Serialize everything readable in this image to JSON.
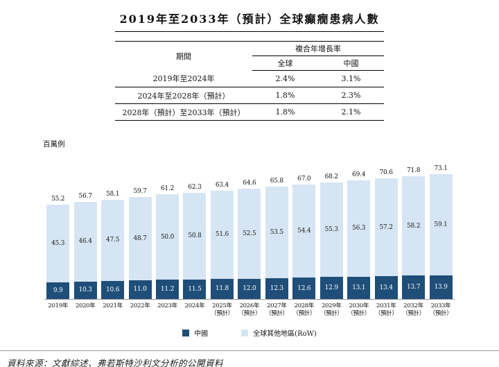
{
  "title": "2019年至2033年（預計）全球癲癇患病人數",
  "table": {
    "headers": {
      "period": "期間",
      "cagr": "複合年增長率",
      "global": "全球",
      "china": "中國"
    },
    "rows": [
      {
        "period": "2019年至2024年",
        "global": "2.4%",
        "china": "3.1%"
      },
      {
        "period": "2024年至2028年（預計）",
        "global": "1.8%",
        "china": "2.3%"
      },
      {
        "period": "2028年（預計）至2033年（預計）",
        "global": "1.8%",
        "china": "2.1%"
      }
    ]
  },
  "chart_data": {
    "type": "bar",
    "stacked": true,
    "title": "2019年至2033年（預計）全球癲癇患病人數",
    "ylabel": "百萬例",
    "ylim": [
      0,
      75
    ],
    "grid": false,
    "legend_position": "bottom",
    "categories": [
      "2019年",
      "2020年",
      "2021年",
      "2022年",
      "2023年",
      "2024年",
      "2025年\n（預計）",
      "2026年\n（預計）",
      "2027年\n（預計）",
      "2028年\n（預計）",
      "2029年\n（預計）",
      "2030年\n（預計）",
      "2031年\n（預計）",
      "2032年\n（預計）",
      "2033年\n（預計）"
    ],
    "series": [
      {
        "name": "中國",
        "color": "#1F4E79",
        "values": [
          9.9,
          10.3,
          10.6,
          11.0,
          11.2,
          11.5,
          11.8,
          12.0,
          12.3,
          12.6,
          12.9,
          13.1,
          13.4,
          13.7,
          13.9
        ]
      },
      {
        "name": "全球其他地區(RoW)",
        "color": "#D6E5F3",
        "values": [
          45.3,
          46.4,
          47.5,
          48.7,
          50.0,
          50.8,
          51.6,
          52.5,
          53.5,
          54.4,
          55.3,
          56.3,
          57.2,
          58.2,
          59.1
        ]
      }
    ],
    "totals": [
      55.2,
      56.7,
      58.1,
      59.7,
      61.2,
      62.3,
      63.4,
      64.6,
      65.8,
      67.0,
      68.2,
      69.4,
      70.6,
      71.8,
      73.1
    ]
  },
  "legend": [
    {
      "label": "中國",
      "color": "#1F4E79"
    },
    {
      "label": "全球其他地區(RoW)",
      "color": "#D6E5F3"
    }
  ],
  "source": "資料來源：文獻綜述、弗若斯特沙利文分析的公開資料"
}
